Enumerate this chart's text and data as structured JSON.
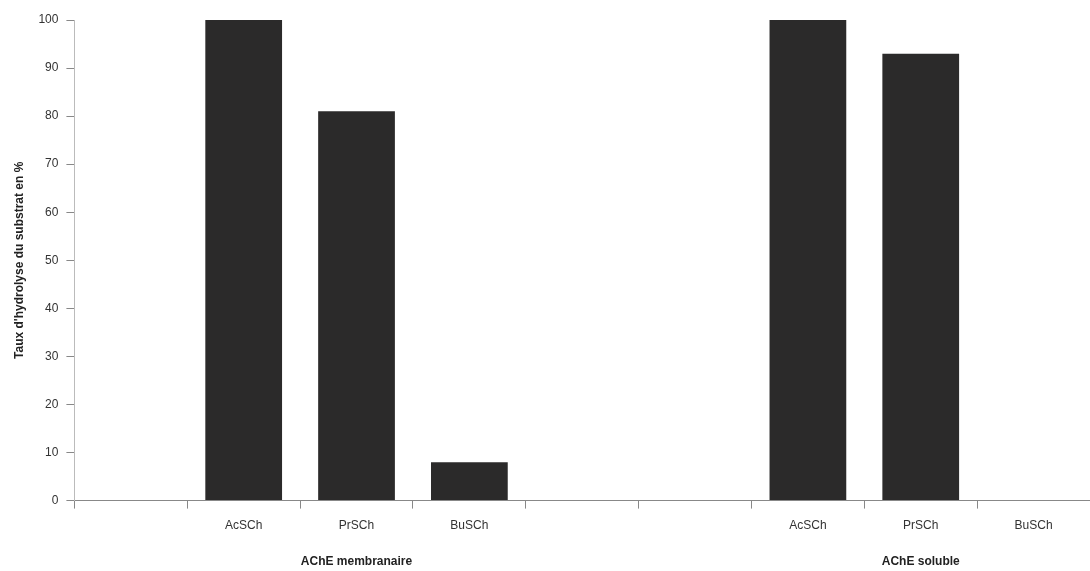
{
  "chart_data": {
    "type": "bar",
    "ylabel": "Taux d'hydrolyse du substrat en %",
    "categories": [
      null,
      "AcSCh",
      "PrSCh",
      "BuSCh",
      null,
      null,
      "AcSCh",
      "PrSCh",
      "BuSCh"
    ],
    "values": [
      null,
      100,
      81,
      8,
      null,
      null,
      100,
      93,
      0
    ],
    "color": "#2b2a2a",
    "ylim": [
      0,
      100
    ],
    "yticks": [
      0,
      10,
      20,
      30,
      40,
      50,
      60,
      70,
      80,
      90,
      100
    ],
    "grid": false,
    "legend": false,
    "annotations": [
      "AChE membranaire",
      "AChE soluble"
    ]
  }
}
